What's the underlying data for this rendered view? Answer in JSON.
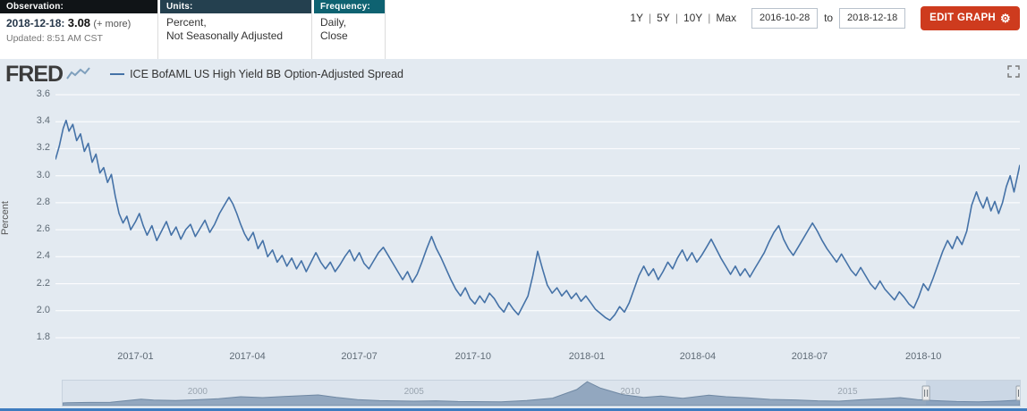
{
  "header": {
    "observation": {
      "label": "Observation:",
      "date": "2018-12-18:",
      "value": "3.08",
      "more_link": "(+ more)",
      "updated": "Updated: 8:51 AM CST"
    },
    "units": {
      "label": "Units:",
      "value_line1": "Percent,",
      "value_line2": "Not Seasonally Adjusted"
    },
    "frequency": {
      "label": "Frequency:",
      "value_line1": "Daily,",
      "value_line2": "Close"
    },
    "range_links": [
      {
        "label": "1Y"
      },
      {
        "label": "5Y"
      },
      {
        "label": "10Y"
      },
      {
        "label": "Max"
      }
    ],
    "range_separator": "|",
    "date_from": "2016-10-28",
    "to_label": "to",
    "date_to": "2018-12-18",
    "edit_graph_label": "EDIT GRAPH",
    "edit_graph_color": "#ce3b1e",
    "gear_glyph": "⚙"
  },
  "graph": {
    "brand": "FRED",
    "legend_title": "ICE BofAML US High Yield BB Option-Adjusted Spread",
    "background": "#e3eaf1"
  },
  "chart_data": {
    "type": "line",
    "title": "ICE BofAML US High Yield BB Option-Adjusted Spread",
    "ylabel": "Percent",
    "ylim": [
      1.8,
      3.6
    ],
    "y_ticks": [
      1.8,
      2.0,
      2.2,
      2.4,
      2.6,
      2.8,
      3.0,
      3.2,
      3.4,
      3.6
    ],
    "grid": "horizontal-white",
    "legend_position": "top-left",
    "x_range": [
      "2016-10-28",
      "2018-12-18"
    ],
    "x_ticks": [
      {
        "label": "2017-01",
        "f": 0.083
      },
      {
        "label": "2017-04",
        "f": 0.199
      },
      {
        "label": "2017-07",
        "f": 0.315
      },
      {
        "label": "2017-10",
        "f": 0.433
      },
      {
        "label": "2018-01",
        "f": 0.551
      },
      {
        "label": "2018-04",
        "f": 0.666
      },
      {
        "label": "2018-07",
        "f": 0.782
      },
      {
        "label": "2018-10",
        "f": 0.9
      }
    ],
    "series": [
      {
        "name": "ICE BofAML US High Yield BB Option-Adjusted Spread",
        "color": "#4572a7",
        "points": [
          [
            0.0,
            3.12
          ],
          [
            0.004,
            3.22
          ],
          [
            0.008,
            3.35
          ],
          [
            0.011,
            3.41
          ],
          [
            0.014,
            3.33
          ],
          [
            0.018,
            3.38
          ],
          [
            0.022,
            3.26
          ],
          [
            0.026,
            3.31
          ],
          [
            0.03,
            3.18
          ],
          [
            0.034,
            3.24
          ],
          [
            0.038,
            3.1
          ],
          [
            0.042,
            3.16
          ],
          [
            0.046,
            3.02
          ],
          [
            0.05,
            3.06
          ],
          [
            0.054,
            2.95
          ],
          [
            0.058,
            3.01
          ],
          [
            0.062,
            2.85
          ],
          [
            0.066,
            2.72
          ],
          [
            0.07,
            2.65
          ],
          [
            0.074,
            2.7
          ],
          [
            0.078,
            2.6
          ],
          [
            0.083,
            2.66
          ],
          [
            0.087,
            2.72
          ],
          [
            0.091,
            2.63
          ],
          [
            0.095,
            2.56
          ],
          [
            0.1,
            2.63
          ],
          [
            0.105,
            2.52
          ],
          [
            0.11,
            2.59
          ],
          [
            0.115,
            2.66
          ],
          [
            0.12,
            2.56
          ],
          [
            0.125,
            2.62
          ],
          [
            0.13,
            2.53
          ],
          [
            0.135,
            2.6
          ],
          [
            0.14,
            2.64
          ],
          [
            0.145,
            2.55
          ],
          [
            0.15,
            2.61
          ],
          [
            0.155,
            2.67
          ],
          [
            0.16,
            2.58
          ],
          [
            0.165,
            2.64
          ],
          [
            0.17,
            2.72
          ],
          [
            0.175,
            2.78
          ],
          [
            0.18,
            2.84
          ],
          [
            0.184,
            2.79
          ],
          [
            0.188,
            2.72
          ],
          [
            0.192,
            2.64
          ],
          [
            0.196,
            2.57
          ],
          [
            0.2,
            2.52
          ],
          [
            0.205,
            2.58
          ],
          [
            0.21,
            2.46
          ],
          [
            0.215,
            2.52
          ],
          [
            0.22,
            2.4
          ],
          [
            0.225,
            2.45
          ],
          [
            0.23,
            2.36
          ],
          [
            0.235,
            2.41
          ],
          [
            0.24,
            2.33
          ],
          [
            0.245,
            2.39
          ],
          [
            0.25,
            2.31
          ],
          [
            0.255,
            2.37
          ],
          [
            0.26,
            2.29
          ],
          [
            0.265,
            2.36
          ],
          [
            0.27,
            2.43
          ],
          [
            0.275,
            2.36
          ],
          [
            0.28,
            2.31
          ],
          [
            0.285,
            2.36
          ],
          [
            0.29,
            2.29
          ],
          [
            0.295,
            2.34
          ],
          [
            0.3,
            2.4
          ],
          [
            0.305,
            2.45
          ],
          [
            0.31,
            2.37
          ],
          [
            0.315,
            2.43
          ],
          [
            0.32,
            2.35
          ],
          [
            0.325,
            2.31
          ],
          [
            0.33,
            2.37
          ],
          [
            0.335,
            2.43
          ],
          [
            0.34,
            2.47
          ],
          [
            0.345,
            2.41
          ],
          [
            0.35,
            2.35
          ],
          [
            0.355,
            2.29
          ],
          [
            0.36,
            2.23
          ],
          [
            0.365,
            2.29
          ],
          [
            0.37,
            2.21
          ],
          [
            0.375,
            2.27
          ],
          [
            0.38,
            2.36
          ],
          [
            0.385,
            2.46
          ],
          [
            0.39,
            2.55
          ],
          [
            0.395,
            2.46
          ],
          [
            0.4,
            2.39
          ],
          [
            0.405,
            2.31
          ],
          [
            0.41,
            2.23
          ],
          [
            0.415,
            2.16
          ],
          [
            0.42,
            2.11
          ],
          [
            0.425,
            2.17
          ],
          [
            0.43,
            2.09
          ],
          [
            0.435,
            2.05
          ],
          [
            0.44,
            2.11
          ],
          [
            0.445,
            2.06
          ],
          [
            0.45,
            2.13
          ],
          [
            0.455,
            2.09
          ],
          [
            0.46,
            2.03
          ],
          [
            0.465,
            1.99
          ],
          [
            0.47,
            2.06
          ],
          [
            0.475,
            2.01
          ],
          [
            0.48,
            1.97
          ],
          [
            0.485,
            2.04
          ],
          [
            0.49,
            2.11
          ],
          [
            0.495,
            2.26
          ],
          [
            0.5,
            2.44
          ],
          [
            0.505,
            2.31
          ],
          [
            0.51,
            2.19
          ],
          [
            0.515,
            2.13
          ],
          [
            0.52,
            2.17
          ],
          [
            0.525,
            2.11
          ],
          [
            0.53,
            2.15
          ],
          [
            0.535,
            2.09
          ],
          [
            0.54,
            2.13
          ],
          [
            0.545,
            2.07
          ],
          [
            0.55,
            2.11
          ],
          [
            0.555,
            2.06
          ],
          [
            0.56,
            2.01
          ],
          [
            0.565,
            1.98
          ],
          [
            0.57,
            1.95
          ],
          [
            0.575,
            1.93
          ],
          [
            0.58,
            1.97
          ],
          [
            0.585,
            2.03
          ],
          [
            0.59,
            1.99
          ],
          [
            0.595,
            2.06
          ],
          [
            0.6,
            2.16
          ],
          [
            0.605,
            2.26
          ],
          [
            0.61,
            2.33
          ],
          [
            0.615,
            2.26
          ],
          [
            0.62,
            2.31
          ],
          [
            0.625,
            2.23
          ],
          [
            0.63,
            2.29
          ],
          [
            0.635,
            2.36
          ],
          [
            0.64,
            2.31
          ],
          [
            0.645,
            2.39
          ],
          [
            0.65,
            2.45
          ],
          [
            0.655,
            2.37
          ],
          [
            0.66,
            2.43
          ],
          [
            0.665,
            2.36
          ],
          [
            0.67,
            2.41
          ],
          [
            0.675,
            2.47
          ],
          [
            0.68,
            2.53
          ],
          [
            0.685,
            2.46
          ],
          [
            0.69,
            2.39
          ],
          [
            0.695,
            2.33
          ],
          [
            0.7,
            2.27
          ],
          [
            0.705,
            2.33
          ],
          [
            0.71,
            2.26
          ],
          [
            0.715,
            2.31
          ],
          [
            0.72,
            2.25
          ],
          [
            0.725,
            2.31
          ],
          [
            0.73,
            2.37
          ],
          [
            0.735,
            2.43
          ],
          [
            0.74,
            2.51
          ],
          [
            0.745,
            2.58
          ],
          [
            0.75,
            2.63
          ],
          [
            0.755,
            2.53
          ],
          [
            0.76,
            2.46
          ],
          [
            0.765,
            2.41
          ],
          [
            0.77,
            2.47
          ],
          [
            0.775,
            2.53
          ],
          [
            0.78,
            2.59
          ],
          [
            0.785,
            2.65
          ],
          [
            0.79,
            2.59
          ],
          [
            0.795,
            2.52
          ],
          [
            0.8,
            2.46
          ],
          [
            0.805,
            2.41
          ],
          [
            0.81,
            2.36
          ],
          [
            0.815,
            2.42
          ],
          [
            0.82,
            2.36
          ],
          [
            0.825,
            2.3
          ],
          [
            0.83,
            2.26
          ],
          [
            0.835,
            2.32
          ],
          [
            0.84,
            2.26
          ],
          [
            0.845,
            2.2
          ],
          [
            0.85,
            2.16
          ],
          [
            0.855,
            2.22
          ],
          [
            0.86,
            2.16
          ],
          [
            0.865,
            2.12
          ],
          [
            0.87,
            2.08
          ],
          [
            0.875,
            2.14
          ],
          [
            0.88,
            2.1
          ],
          [
            0.885,
            2.05
          ],
          [
            0.89,
            2.02
          ],
          [
            0.895,
            2.1
          ],
          [
            0.9,
            2.2
          ],
          [
            0.905,
            2.15
          ],
          [
            0.91,
            2.24
          ],
          [
            0.915,
            2.34
          ],
          [
            0.92,
            2.44
          ],
          [
            0.925,
            2.52
          ],
          [
            0.93,
            2.46
          ],
          [
            0.935,
            2.55
          ],
          [
            0.94,
            2.49
          ],
          [
            0.945,
            2.59
          ],
          [
            0.95,
            2.78
          ],
          [
            0.955,
            2.88
          ],
          [
            0.958,
            2.82
          ],
          [
            0.962,
            2.76
          ],
          [
            0.966,
            2.84
          ],
          [
            0.97,
            2.74
          ],
          [
            0.974,
            2.81
          ],
          [
            0.978,
            2.72
          ],
          [
            0.982,
            2.8
          ],
          [
            0.986,
            2.92
          ],
          [
            0.99,
            3.0
          ],
          [
            0.994,
            2.88
          ],
          [
            1.0,
            3.08
          ]
        ]
      }
    ],
    "navigator": {
      "type": "area",
      "ylim": [
        0,
        14
      ],
      "fill": "#92a7bf",
      "stroke": "#6f88a3",
      "selection": [
        0.902,
        1.0
      ],
      "x_ticks": [
        {
          "label": "2000",
          "f": 0.141
        },
        {
          "label": "2005",
          "f": 0.367
        },
        {
          "label": "2010",
          "f": 0.593
        },
        {
          "label": "2015",
          "f": 0.82
        }
      ],
      "points": [
        [
          0.0,
          1.5
        ],
        [
          0.005,
          1.6
        ],
        [
          0.027,
          1.8
        ],
        [
          0.05,
          1.9
        ],
        [
          0.082,
          3.6
        ],
        [
          0.095,
          3.1
        ],
        [
          0.118,
          2.9
        ],
        [
          0.141,
          3.3
        ],
        [
          0.163,
          3.9
        ],
        [
          0.186,
          5.0
        ],
        [
          0.209,
          4.5
        ],
        [
          0.231,
          5.1
        ],
        [
          0.267,
          6.0
        ],
        [
          0.286,
          4.6
        ],
        [
          0.308,
          3.4
        ],
        [
          0.331,
          2.8
        ],
        [
          0.367,
          2.5
        ],
        [
          0.39,
          2.7
        ],
        [
          0.413,
          2.3
        ],
        [
          0.458,
          2.1
        ],
        [
          0.485,
          2.9
        ],
        [
          0.512,
          4.2
        ],
        [
          0.537,
          9.0
        ],
        [
          0.548,
          13.4
        ],
        [
          0.562,
          9.8
        ],
        [
          0.585,
          6.2
        ],
        [
          0.607,
          4.6
        ],
        [
          0.625,
          5.4
        ],
        [
          0.648,
          4.1
        ],
        [
          0.675,
          5.9
        ],
        [
          0.693,
          5.0
        ],
        [
          0.716,
          4.4
        ],
        [
          0.739,
          3.5
        ],
        [
          0.766,
          3.2
        ],
        [
          0.789,
          2.7
        ],
        [
          0.811,
          2.5
        ],
        [
          0.834,
          3.3
        ],
        [
          0.861,
          4.0
        ],
        [
          0.875,
          4.5
        ],
        [
          0.893,
          3.4
        ],
        [
          0.911,
          2.8
        ],
        [
          0.934,
          2.3
        ],
        [
          0.957,
          2.1
        ],
        [
          0.979,
          2.5
        ],
        [
          1.0,
          3.1
        ]
      ]
    }
  }
}
